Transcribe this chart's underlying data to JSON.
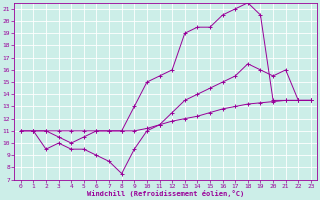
{
  "xlabel": "Windchill (Refroidissement éolien,°C)",
  "background_color": "#cceee8",
  "line_color": "#990099",
  "grid_color": "#ffffff",
  "xlim": [
    -0.5,
    23.5
  ],
  "ylim": [
    7,
    21.5
  ],
  "yticks": [
    7,
    8,
    9,
    10,
    11,
    12,
    13,
    14,
    15,
    16,
    17,
    18,
    19,
    20,
    21
  ],
  "xticks": [
    0,
    1,
    2,
    3,
    4,
    5,
    6,
    7,
    8,
    9,
    10,
    11,
    12,
    13,
    14,
    15,
    16,
    17,
    18,
    19,
    20,
    21,
    22,
    23
  ],
  "line1_x": [
    0,
    1,
    2,
    3,
    4,
    5,
    6,
    7,
    8,
    9,
    10,
    11,
    12,
    13,
    14,
    15,
    16,
    17,
    18,
    19,
    20,
    21,
    22,
    23
  ],
  "line1_y": [
    11,
    11,
    11,
    11,
    11,
    11,
    11,
    11,
    11,
    11,
    11.2,
    11.5,
    11.8,
    12,
    12.2,
    12.5,
    12.8,
    13,
    13.2,
    13.3,
    13.4,
    13.5,
    13.5,
    13.5
  ],
  "line2_x": [
    0,
    1,
    2,
    3,
    4,
    5,
    6,
    7,
    8,
    9,
    10,
    11,
    12,
    13,
    14,
    15,
    16,
    17,
    18,
    19,
    20,
    21,
    22,
    23
  ],
  "line2_y": [
    11,
    11,
    9.5,
    10,
    9.5,
    9.5,
    9.0,
    8.5,
    7.5,
    9.5,
    11,
    11.5,
    12.5,
    13.5,
    14,
    14.5,
    15,
    15.5,
    16.5,
    16,
    15.5,
    16,
    13.5,
    13.5
  ],
  "line3_x": [
    1,
    2,
    3,
    4,
    5,
    6,
    7,
    8,
    9,
    10,
    11,
    12,
    13,
    14,
    15,
    16,
    17,
    18,
    19,
    20,
    21,
    22,
    23
  ],
  "line3_y": [
    11,
    11,
    10.5,
    10,
    10.5,
    11,
    11,
    11,
    13,
    15,
    15.5,
    16,
    19,
    19.5,
    19.5,
    20.5,
    21,
    21.5,
    20.5,
    13.5,
    13.5,
    13.5,
    13.5
  ]
}
